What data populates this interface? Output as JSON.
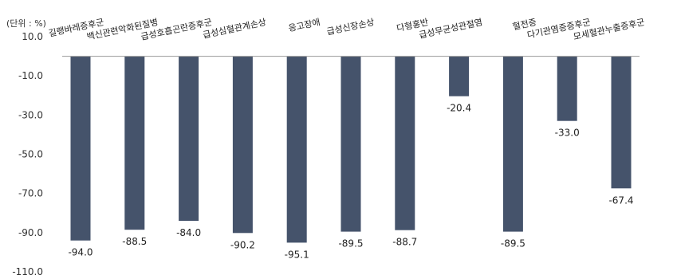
{
  "chart_data": {
    "type": "bar",
    "unit_label": "(단위 : %)",
    "categories": [
      "길랭바레증후군",
      "백신관련악화된질병",
      "급성호흡곤란증후군",
      "급성심혈관계손상",
      "응고장애",
      "급성신장손상",
      "다형홍반",
      "급성무균성관절염",
      "혈전증",
      "다기관염증증후군",
      "모세혈관누출증후군"
    ],
    "values": [
      -94.0,
      -88.5,
      -84.0,
      -90.2,
      -95.1,
      -89.5,
      -88.7,
      -20.4,
      -89.5,
      -33.0,
      -67.4
    ],
    "value_labels": [
      "-94.0",
      "-88.5",
      "-84.0",
      "-90.2",
      "-95.1",
      "-89.5",
      "-88.7",
      "-20.4",
      "-89.5",
      "-33.0",
      "-67.4"
    ],
    "yticks": [
      "10.0",
      "-10.0",
      "-30.0",
      "-50.0",
      "-70.0",
      "-90.0",
      "-110.0"
    ],
    "ylim": [
      -110,
      10
    ],
    "bar_color": "#45536b",
    "grid": false
  }
}
